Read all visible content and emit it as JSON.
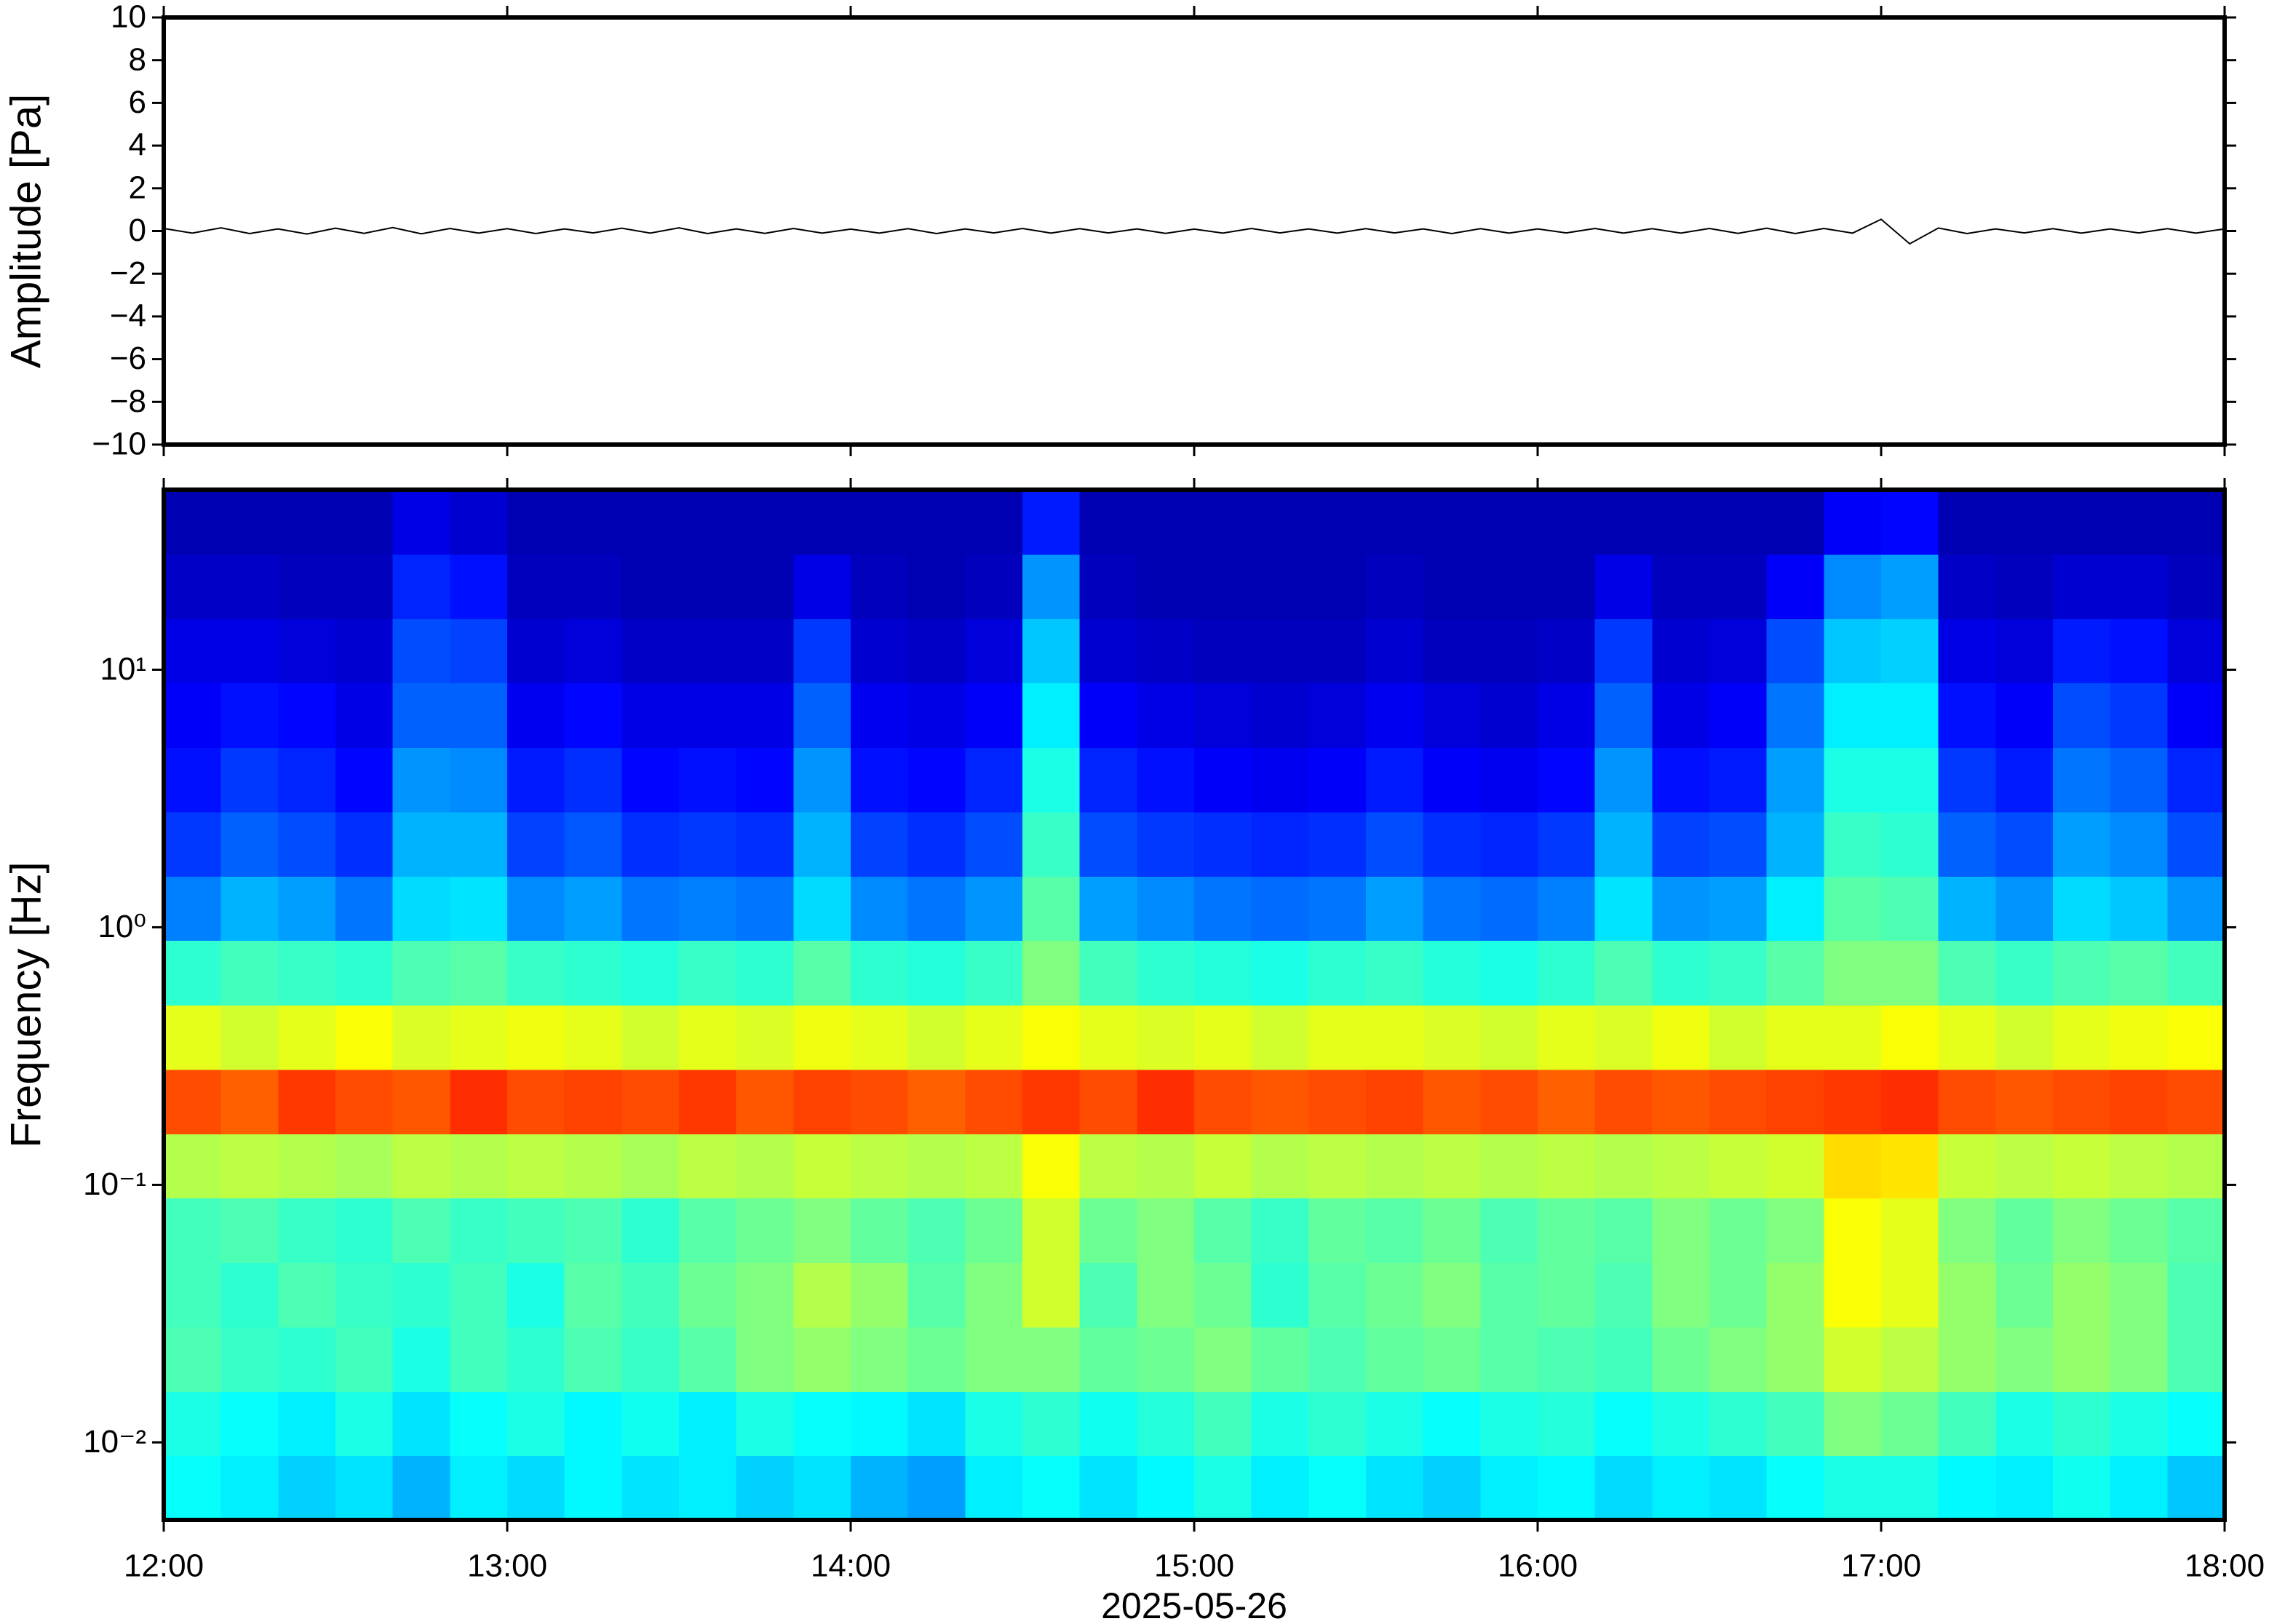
{
  "chart_data": [
    {
      "type": "line",
      "ylabel": "Amplitude [Pa]",
      "color": "#000000",
      "x": [
        720,
        725,
        730,
        735,
        740,
        745,
        750,
        755,
        760,
        765,
        770,
        775,
        780,
        785,
        790,
        795,
        800,
        805,
        810,
        815,
        820,
        825,
        830,
        835,
        840,
        845,
        850,
        855,
        860,
        865,
        870,
        875,
        880,
        885,
        890,
        895,
        900,
        905,
        910,
        915,
        920,
        925,
        930,
        935,
        940,
        945,
        950,
        955,
        960,
        965,
        970,
        975,
        980,
        985,
        990,
        995,
        1000,
        1005,
        1010,
        1015,
        1020,
        1025,
        1030,
        1035,
        1040,
        1045,
        1050,
        1055,
        1060,
        1065,
        1070,
        1075,
        1080
      ],
      "values": [
        0.12,
        -0.1,
        0.15,
        -0.12,
        0.1,
        -0.14,
        0.13,
        -0.11,
        0.16,
        -0.13,
        0.12,
        -0.1,
        0.11,
        -0.12,
        0.1,
        -0.09,
        0.13,
        -0.1,
        0.15,
        -0.12,
        0.1,
        -0.11,
        0.12,
        -0.1,
        0.09,
        -0.1,
        0.11,
        -0.12,
        0.1,
        -0.09,
        0.12,
        -0.1,
        0.11,
        -0.09,
        0.1,
        -0.11,
        0.09,
        -0.1,
        0.12,
        -0.09,
        0.1,
        -0.1,
        0.11,
        -0.09,
        0.1,
        -0.12,
        0.11,
        -0.1,
        0.1,
        -0.09,
        0.12,
        -0.1,
        0.11,
        -0.1,
        0.12,
        -0.11,
        0.13,
        -0.12,
        0.12,
        -0.1,
        0.55,
        -0.6,
        0.14,
        -0.12,
        0.1,
        -0.09,
        0.11,
        -0.1,
        0.1,
        -0.09,
        0.11,
        -0.1,
        0.1
      ],
      "xlim": [
        720,
        1080
      ],
      "xticks": [
        720,
        780,
        840,
        900,
        960,
        1020,
        1080
      ],
      "ylim": [
        -10,
        10
      ],
      "yticks": [
        {
          "value": -10,
          "label": "−10"
        },
        {
          "value": -8,
          "label": "−8"
        },
        {
          "value": -6,
          "label": "−6"
        },
        {
          "value": -4,
          "label": "−4"
        },
        {
          "value": -2,
          "label": "−2"
        },
        0,
        2,
        4,
        6,
        8,
        10
      ]
    },
    {
      "type": "heatmap",
      "ylabel": "Frequency [Hz]",
      "xlabel": "2025-05-26",
      "colormap": "jet",
      "zlim": [
        0,
        1
      ],
      "yscale": "log",
      "x_bins": [
        720,
        730,
        740,
        750,
        760,
        770,
        780,
        790,
        800,
        810,
        820,
        830,
        840,
        850,
        860,
        870,
        880,
        890,
        900,
        910,
        920,
        930,
        940,
        950,
        960,
        970,
        980,
        990,
        1000,
        1010,
        1020,
        1030,
        1040,
        1050,
        1060,
        1070,
        1080
      ],
      "y_bins": [
        0.005,
        0.0089,
        0.0158,
        0.0281,
        0.05,
        0.089,
        0.158,
        0.281,
        0.5,
        0.89,
        1.58,
        2.81,
        5,
        8.9,
        15.8,
        28.1,
        50
      ],
      "values": [
        [
          0.38,
          0.36,
          0.33,
          0.35,
          0.3,
          0.36,
          0.34,
          0.37,
          0.35,
          0.36,
          0.33,
          0.35,
          0.3,
          0.28,
          0.36,
          0.38,
          0.35,
          0.37,
          0.4,
          0.36,
          0.38,
          0.35,
          0.33,
          0.36,
          0.37,
          0.34,
          0.36,
          0.35,
          0.38,
          0.4,
          0.4,
          0.37,
          0.36,
          0.39,
          0.36,
          0.32
        ],
        [
          0.4,
          0.38,
          0.36,
          0.4,
          0.35,
          0.38,
          0.4,
          0.37,
          0.39,
          0.36,
          0.4,
          0.38,
          0.37,
          0.35,
          0.4,
          0.42,
          0.39,
          0.41,
          0.44,
          0.4,
          0.42,
          0.4,
          0.38,
          0.4,
          0.41,
          0.38,
          0.4,
          0.42,
          0.44,
          0.5,
          0.48,
          0.44,
          0.4,
          0.42,
          0.4,
          0.38
        ],
        [
          0.45,
          0.43,
          0.42,
          0.44,
          0.4,
          0.44,
          0.42,
          0.45,
          0.43,
          0.46,
          0.5,
          0.52,
          0.5,
          0.48,
          0.5,
          0.5,
          0.47,
          0.48,
          0.5,
          0.47,
          0.45,
          0.47,
          0.48,
          0.46,
          0.45,
          0.44,
          0.48,
          0.5,
          0.52,
          0.58,
          0.56,
          0.52,
          0.5,
          0.52,
          0.5,
          0.45
        ],
        [
          0.44,
          0.42,
          0.45,
          0.43,
          0.42,
          0.44,
          0.4,
          0.46,
          0.44,
          0.48,
          0.5,
          0.55,
          0.52,
          0.46,
          0.5,
          0.58,
          0.45,
          0.5,
          0.48,
          0.42,
          0.46,
          0.48,
          0.5,
          0.46,
          0.47,
          0.45,
          0.5,
          0.48,
          0.52,
          0.62,
          0.6,
          0.52,
          0.48,
          0.52,
          0.5,
          0.45
        ],
        [
          0.44,
          0.45,
          0.43,
          0.42,
          0.45,
          0.43,
          0.44,
          0.45,
          0.42,
          0.46,
          0.48,
          0.5,
          0.47,
          0.45,
          0.48,
          0.58,
          0.48,
          0.5,
          0.46,
          0.43,
          0.47,
          0.46,
          0.48,
          0.45,
          0.47,
          0.46,
          0.5,
          0.48,
          0.5,
          0.62,
          0.6,
          0.5,
          0.47,
          0.5,
          0.48,
          0.46
        ],
        [
          0.55,
          0.56,
          0.55,
          0.54,
          0.56,
          0.55,
          0.56,
          0.55,
          0.54,
          0.56,
          0.55,
          0.57,
          0.56,
          0.55,
          0.56,
          0.62,
          0.56,
          0.55,
          0.57,
          0.55,
          0.56,
          0.55,
          0.56,
          0.55,
          0.56,
          0.55,
          0.56,
          0.57,
          0.58,
          0.66,
          0.65,
          0.57,
          0.56,
          0.57,
          0.56,
          0.55
        ],
        [
          0.8,
          0.78,
          0.82,
          0.8,
          0.79,
          0.83,
          0.8,
          0.81,
          0.8,
          0.82,
          0.79,
          0.81,
          0.8,
          0.78,
          0.8,
          0.82,
          0.8,
          0.83,
          0.8,
          0.79,
          0.8,
          0.81,
          0.79,
          0.8,
          0.78,
          0.8,
          0.79,
          0.8,
          0.81,
          0.82,
          0.83,
          0.8,
          0.79,
          0.8,
          0.81,
          0.8
        ],
        [
          0.6,
          0.58,
          0.6,
          0.62,
          0.59,
          0.6,
          0.61,
          0.6,
          0.58,
          0.6,
          0.59,
          0.61,
          0.6,
          0.58,
          0.6,
          0.62,
          0.6,
          0.59,
          0.6,
          0.58,
          0.6,
          0.6,
          0.59,
          0.58,
          0.6,
          0.59,
          0.61,
          0.58,
          0.6,
          0.6,
          0.62,
          0.6,
          0.58,
          0.6,
          0.61,
          0.62
        ],
        [
          0.42,
          0.44,
          0.43,
          0.42,
          0.45,
          0.46,
          0.43,
          0.42,
          0.41,
          0.43,
          0.42,
          0.46,
          0.42,
          0.41,
          0.43,
          0.5,
          0.44,
          0.42,
          0.41,
          0.4,
          0.42,
          0.43,
          0.41,
          0.4,
          0.42,
          0.45,
          0.42,
          0.43,
          0.46,
          0.5,
          0.5,
          0.45,
          0.43,
          0.45,
          0.46,
          0.44
        ],
        [
          0.25,
          0.3,
          0.28,
          0.24,
          0.34,
          0.35,
          0.26,
          0.28,
          0.24,
          0.25,
          0.24,
          0.34,
          0.26,
          0.24,
          0.27,
          0.46,
          0.28,
          0.26,
          0.24,
          0.23,
          0.24,
          0.28,
          0.24,
          0.23,
          0.25,
          0.35,
          0.27,
          0.28,
          0.36,
          0.46,
          0.45,
          0.3,
          0.27,
          0.34,
          0.32,
          0.27
        ],
        [
          0.18,
          0.22,
          0.2,
          0.17,
          0.3,
          0.3,
          0.19,
          0.21,
          0.17,
          0.18,
          0.17,
          0.3,
          0.19,
          0.17,
          0.2,
          0.43,
          0.2,
          0.18,
          0.17,
          0.16,
          0.17,
          0.2,
          0.17,
          0.16,
          0.18,
          0.3,
          0.19,
          0.2,
          0.3,
          0.43,
          0.42,
          0.22,
          0.2,
          0.28,
          0.26,
          0.2
        ],
        [
          0.14,
          0.18,
          0.16,
          0.13,
          0.27,
          0.26,
          0.15,
          0.17,
          0.13,
          0.14,
          0.13,
          0.27,
          0.14,
          0.13,
          0.16,
          0.4,
          0.16,
          0.14,
          0.12,
          0.11,
          0.12,
          0.15,
          0.12,
          0.11,
          0.13,
          0.27,
          0.14,
          0.15,
          0.28,
          0.4,
          0.4,
          0.18,
          0.15,
          0.24,
          0.22,
          0.16
        ],
        [
          0.12,
          0.14,
          0.13,
          0.1,
          0.22,
          0.22,
          0.11,
          0.13,
          0.1,
          0.1,
          0.1,
          0.22,
          0.11,
          0.1,
          0.12,
          0.36,
          0.12,
          0.1,
          0.09,
          0.08,
          0.09,
          0.11,
          0.09,
          0.08,
          0.1,
          0.22,
          0.1,
          0.12,
          0.24,
          0.36,
          0.36,
          0.14,
          0.12,
          0.2,
          0.18,
          0.12
        ],
        [
          0.1,
          0.1,
          0.09,
          0.08,
          0.2,
          0.19,
          0.08,
          0.09,
          0.07,
          0.07,
          0.07,
          0.18,
          0.08,
          0.07,
          0.09,
          0.32,
          0.08,
          0.07,
          0.06,
          0.06,
          0.06,
          0.08,
          0.06,
          0.06,
          0.07,
          0.18,
          0.08,
          0.09,
          0.2,
          0.32,
          0.33,
          0.1,
          0.09,
          0.15,
          0.14,
          0.09
        ],
        [
          0.07,
          0.07,
          0.06,
          0.06,
          0.16,
          0.14,
          0.06,
          0.06,
          0.05,
          0.05,
          0.05,
          0.1,
          0.06,
          0.05,
          0.06,
          0.27,
          0.06,
          0.05,
          0.05,
          0.05,
          0.05,
          0.06,
          0.05,
          0.05,
          0.05,
          0.1,
          0.06,
          0.06,
          0.12,
          0.26,
          0.28,
          0.07,
          0.06,
          0.08,
          0.08,
          0.06
        ],
        [
          0.05,
          0.05,
          0.05,
          0.05,
          0.1,
          0.08,
          0.05,
          0.05,
          0.05,
          0.05,
          0.05,
          0.05,
          0.05,
          0.05,
          0.05,
          0.15,
          0.05,
          0.05,
          0.05,
          0.05,
          0.05,
          0.05,
          0.05,
          0.05,
          0.05,
          0.05,
          0.05,
          0.05,
          0.05,
          0.12,
          0.13,
          0.05,
          0.05,
          0.05,
          0.05,
          0.05
        ]
      ],
      "xlim": [
        720,
        1080
      ],
      "xticks": [
        {
          "value": 720,
          "label": "12:00"
        },
        {
          "value": 780,
          "label": "13:00"
        },
        {
          "value": 840,
          "label": "14:00"
        },
        {
          "value": 900,
          "label": "15:00"
        },
        {
          "value": 960,
          "label": "16:00"
        },
        {
          "value": 1020,
          "label": "17:00"
        },
        {
          "value": 1080,
          "label": "18:00"
        }
      ],
      "ylim": [
        0.005,
        50
      ],
      "yticks": [
        {
          "value": 0.01,
          "label": "10⁻²"
        },
        {
          "value": 0.1,
          "label": "10⁻¹"
        },
        {
          "value": 1,
          "label": "10⁰"
        },
        {
          "value": 10,
          "label": "10¹"
        }
      ]
    }
  ]
}
